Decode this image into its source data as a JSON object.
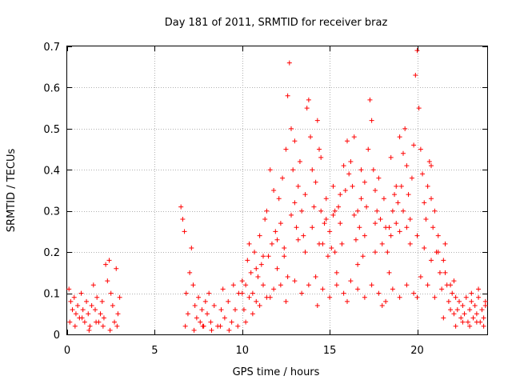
{
  "chart_data": {
    "type": "scatter",
    "title": "Day 181 of 2011, SRMTID for receiver braz",
    "xlabel": "GPS time / hours",
    "ylabel": "SRMTID / TECUs",
    "xlim": [
      0,
      24
    ],
    "ylim": [
      0,
      0.7
    ],
    "x_ticks": [
      0,
      5,
      10,
      15,
      20
    ],
    "y_ticks": [
      0,
      0.1,
      0.2,
      0.3,
      0.4,
      0.5,
      0.6,
      0.7
    ],
    "x_tick_labels": [
      "0",
      "5",
      "10",
      "15",
      "20"
    ],
    "y_tick_labels": [
      "0",
      "0.1",
      "0.2",
      "0.3",
      "0.4",
      "0.5",
      "0.6",
      "0.7"
    ],
    "grid": true,
    "marker": "+",
    "colors": {
      "series": "#ff0000",
      "grid": "#b0b0b0",
      "axis": "#000000"
    },
    "series": [
      {
        "name": "SRMTID",
        "points": [
          [
            0.1,
            0.11
          ],
          [
            0.2,
            0.08
          ],
          [
            0.3,
            0.06
          ],
          [
            0.4,
            0.09
          ],
          [
            0.5,
            0.05
          ],
          [
            0.6,
            0.07
          ],
          [
            0.7,
            0.04
          ],
          [
            0.8,
            0.1
          ],
          [
            0.9,
            0.06
          ],
          [
            1.0,
            0.03
          ],
          [
            1.1,
            0.08
          ],
          [
            1.2,
            0.05
          ],
          [
            1.3,
            0.02
          ],
          [
            1.4,
            0.07
          ],
          [
            1.5,
            0.12
          ],
          [
            1.6,
            0.06
          ],
          [
            1.7,
            0.09
          ],
          [
            1.8,
            0.03
          ],
          [
            1.9,
            0.05
          ],
          [
            2.0,
            0.08
          ],
          [
            2.1,
            0.04
          ],
          [
            2.2,
            0.17
          ],
          [
            2.3,
            0.13
          ],
          [
            2.4,
            0.18
          ],
          [
            2.5,
            0.1
          ],
          [
            2.6,
            0.07
          ],
          [
            2.7,
            0.03
          ],
          [
            2.8,
            0.16
          ],
          [
            2.9,
            0.05
          ],
          [
            3.0,
            0.09
          ],
          [
            0.15,
            0.03
          ],
          [
            0.45,
            0.02
          ],
          [
            0.85,
            0.04
          ],
          [
            1.25,
            0.01
          ],
          [
            1.65,
            0.03
          ],
          [
            2.05,
            0.02
          ],
          [
            2.45,
            0.01
          ],
          [
            2.85,
            0.02
          ],
          [
            6.5,
            0.31
          ],
          [
            6.6,
            0.28
          ],
          [
            6.7,
            0.25
          ],
          [
            6.8,
            0.1
          ],
          [
            6.9,
            0.05
          ],
          [
            7.0,
            0.15
          ],
          [
            7.1,
            0.21
          ],
          [
            7.2,
            0.12
          ],
          [
            7.3,
            0.07
          ],
          [
            7.4,
            0.04
          ],
          [
            7.5,
            0.09
          ],
          [
            7.6,
            0.03
          ],
          [
            7.7,
            0.06
          ],
          [
            7.8,
            0.02
          ],
          [
            7.9,
            0.08
          ],
          [
            8.0,
            0.05
          ],
          [
            8.2,
            0.03
          ],
          [
            8.4,
            0.07
          ],
          [
            8.6,
            0.02
          ],
          [
            8.8,
            0.06
          ],
          [
            9.0,
            0.04
          ],
          [
            9.2,
            0.08
          ],
          [
            9.4,
            0.03
          ],
          [
            9.6,
            0.06
          ],
          [
            9.8,
            0.1
          ],
          [
            10.0,
            0.13
          ],
          [
            6.75,
            0.02
          ],
          [
            7.25,
            0.01
          ],
          [
            7.75,
            0.02
          ],
          [
            8.25,
            0.01
          ],
          [
            8.75,
            0.02
          ],
          [
            9.25,
            0.01
          ],
          [
            9.75,
            0.02
          ],
          [
            8.1,
            0.1
          ],
          [
            8.9,
            0.11
          ],
          [
            9.5,
            0.12
          ],
          [
            10.1,
            0.06
          ],
          [
            10.3,
            0.18
          ],
          [
            10.4,
            0.22
          ],
          [
            10.5,
            0.15
          ],
          [
            10.6,
            0.1
          ],
          [
            10.7,
            0.2
          ],
          [
            10.8,
            0.08
          ],
          [
            10.9,
            0.14
          ],
          [
            11.0,
            0.24
          ],
          [
            11.1,
            0.17
          ],
          [
            11.2,
            0.12
          ],
          [
            11.3,
            0.28
          ],
          [
            11.4,
            0.3
          ],
          [
            11.5,
            0.19
          ],
          [
            11.6,
            0.09
          ],
          [
            11.7,
            0.22
          ],
          [
            11.8,
            0.35
          ],
          [
            11.9,
            0.25
          ],
          [
            12.0,
            0.16
          ],
          [
            12.1,
            0.33
          ],
          [
            12.2,
            0.27
          ],
          [
            12.3,
            0.38
          ],
          [
            12.4,
            0.21
          ],
          [
            12.5,
            0.45
          ],
          [
            12.6,
            0.58
          ],
          [
            12.7,
            0.66
          ],
          [
            12.8,
            0.5
          ],
          [
            12.9,
            0.4
          ],
          [
            13.0,
            0.32
          ],
          [
            13.1,
            0.26
          ],
          [
            13.2,
            0.36
          ],
          [
            13.3,
            0.42
          ],
          [
            13.4,
            0.3
          ],
          [
            13.5,
            0.24
          ],
          [
            13.6,
            0.34
          ],
          [
            13.7,
            0.55
          ],
          [
            13.8,
            0.57
          ],
          [
            13.9,
            0.48
          ],
          [
            14.0,
            0.4
          ],
          [
            14.1,
            0.31
          ],
          [
            14.2,
            0.37
          ],
          [
            14.3,
            0.52
          ],
          [
            14.4,
            0.45
          ],
          [
            14.5,
            0.3
          ],
          [
            14.6,
            0.22
          ],
          [
            14.7,
            0.27
          ],
          [
            14.8,
            0.33
          ],
          [
            14.9,
            0.19
          ],
          [
            15.0,
            0.25
          ],
          [
            15.1,
            0.21
          ],
          [
            15.2,
            0.29
          ],
          [
            15.3,
            0.2
          ],
          [
            15.4,
            0.15
          ],
          [
            15.5,
            0.31
          ],
          [
            15.6,
            0.27
          ],
          [
            15.7,
            0.22
          ],
          [
            15.8,
            0.41
          ],
          [
            15.9,
            0.35
          ],
          [
            16.0,
            0.47
          ],
          [
            16.1,
            0.39
          ],
          [
            16.2,
            0.42
          ],
          [
            16.3,
            0.36
          ],
          [
            16.4,
            0.29
          ],
          [
            16.5,
            0.23
          ],
          [
            16.6,
            0.17
          ],
          [
            16.7,
            0.26
          ],
          [
            16.8,
            0.33
          ],
          [
            16.9,
            0.19
          ],
          [
            17.0,
            0.24
          ],
          [
            17.1,
            0.31
          ],
          [
            17.2,
            0.45
          ],
          [
            17.3,
            0.57
          ],
          [
            17.4,
            0.52
          ],
          [
            17.5,
            0.4
          ],
          [
            17.6,
            0.35
          ],
          [
            17.7,
            0.3
          ],
          [
            17.8,
            0.38
          ],
          [
            17.9,
            0.28
          ],
          [
            18.0,
            0.22
          ],
          [
            18.1,
            0.33
          ],
          [
            18.2,
            0.26
          ],
          [
            18.3,
            0.2
          ],
          [
            18.4,
            0.15
          ],
          [
            18.5,
            0.24
          ],
          [
            18.6,
            0.3
          ],
          [
            18.7,
            0.34
          ],
          [
            18.8,
            0.27
          ],
          [
            18.9,
            0.32
          ],
          [
            19.0,
            0.25
          ],
          [
            19.1,
            0.36
          ],
          [
            19.2,
            0.44
          ],
          [
            19.3,
            0.5
          ],
          [
            19.4,
            0.41
          ],
          [
            19.5,
            0.34
          ],
          [
            19.6,
            0.28
          ],
          [
            19.7,
            0.38
          ],
          [
            19.8,
            0.46
          ],
          [
            19.9,
            0.63
          ],
          [
            20.0,
            0.69
          ],
          [
            20.1,
            0.55
          ],
          [
            20.2,
            0.45
          ],
          [
            20.3,
            0.39
          ],
          [
            20.4,
            0.32
          ],
          [
            20.5,
            0.28
          ],
          [
            20.6,
            0.36
          ],
          [
            20.7,
            0.42
          ],
          [
            20.8,
            0.33
          ],
          [
            20.9,
            0.26
          ],
          [
            21.0,
            0.3
          ],
          [
            21.1,
            0.2
          ],
          [
            21.2,
            0.24
          ],
          [
            21.3,
            0.15
          ],
          [
            21.4,
            0.11
          ],
          [
            21.5,
            0.18
          ],
          [
            21.6,
            0.22
          ],
          [
            21.7,
            0.12
          ],
          [
            21.8,
            0.08
          ],
          [
            21.9,
            0.06
          ],
          [
            22.0,
            0.1
          ],
          [
            22.1,
            0.05
          ],
          [
            10.2,
            0.03
          ],
          [
            10.6,
            0.05
          ],
          [
            11.0,
            0.07
          ],
          [
            11.4,
            0.09
          ],
          [
            11.8,
            0.11
          ],
          [
            12.2,
            0.12
          ],
          [
            12.6,
            0.14
          ],
          [
            13.0,
            0.13
          ],
          [
            13.4,
            0.1
          ],
          [
            13.8,
            0.12
          ],
          [
            14.2,
            0.14
          ],
          [
            14.6,
            0.11
          ],
          [
            15.0,
            0.09
          ],
          [
            15.4,
            0.12
          ],
          [
            15.8,
            0.1
          ],
          [
            16.2,
            0.13
          ],
          [
            16.6,
            0.11
          ],
          [
            17.0,
            0.09
          ],
          [
            17.4,
            0.12
          ],
          [
            17.8,
            0.1
          ],
          [
            18.2,
            0.08
          ],
          [
            18.6,
            0.11
          ],
          [
            19.0,
            0.09
          ],
          [
            19.4,
            0.12
          ],
          [
            19.8,
            0.1
          ],
          [
            20.2,
            0.14
          ],
          [
            20.6,
            0.12
          ],
          [
            21.0,
            0.09
          ],
          [
            12.5,
            0.08
          ],
          [
            14.3,
            0.07
          ],
          [
            16.0,
            0.08
          ],
          [
            18.0,
            0.07
          ],
          [
            20.0,
            0.09
          ],
          [
            21.5,
            0.04
          ],
          [
            11.6,
            0.4
          ],
          [
            13.0,
            0.47
          ],
          [
            14.5,
            0.43
          ],
          [
            16.4,
            0.48
          ],
          [
            18.5,
            0.43
          ],
          [
            19.0,
            0.48
          ],
          [
            20.8,
            0.41
          ],
          [
            15.3,
            0.3
          ],
          [
            17.6,
            0.27
          ],
          [
            19.6,
            0.22
          ],
          [
            22.2,
            0.09
          ],
          [
            22.3,
            0.06
          ],
          [
            22.4,
            0.08
          ],
          [
            22.5,
            0.04
          ],
          [
            22.6,
            0.07
          ],
          [
            22.7,
            0.05
          ],
          [
            22.8,
            0.09
          ],
          [
            22.9,
            0.03
          ],
          [
            23.0,
            0.06
          ],
          [
            23.1,
            0.08
          ],
          [
            23.2,
            0.04
          ],
          [
            23.3,
            0.07
          ],
          [
            23.4,
            0.05
          ],
          [
            23.5,
            0.09
          ],
          [
            23.6,
            0.03
          ],
          [
            23.7,
            0.06
          ],
          [
            23.8,
            0.04
          ],
          [
            23.9,
            0.07
          ],
          [
            22.2,
            0.02
          ],
          [
            22.6,
            0.03
          ],
          [
            23.0,
            0.02
          ],
          [
            23.4,
            0.03
          ],
          [
            23.8,
            0.02
          ],
          [
            21.9,
            0.12
          ],
          [
            22.1,
            0.13
          ],
          [
            23.1,
            0.1
          ],
          [
            23.5,
            0.11
          ],
          [
            23.9,
            0.08
          ],
          [
            10.0,
            0.1
          ],
          [
            10.2,
            0.12
          ],
          [
            10.4,
            0.09
          ],
          [
            10.8,
            0.16
          ],
          [
            11.2,
            0.19
          ],
          [
            12.0,
            0.23
          ],
          [
            12.8,
            0.29
          ],
          [
            13.6,
            0.2
          ],
          [
            14.0,
            0.26
          ],
          [
            14.4,
            0.22
          ],
          [
            14.8,
            0.28
          ],
          [
            15.6,
            0.34
          ],
          [
            16.8,
            0.4
          ],
          [
            17.6,
            0.2
          ],
          [
            18.4,
            0.26
          ],
          [
            19.2,
            0.3
          ],
          [
            20.0,
            0.24
          ],
          [
            20.4,
            0.21
          ],
          [
            20.8,
            0.18
          ],
          [
            21.2,
            0.2
          ],
          [
            21.6,
            0.15
          ],
          [
            12.4,
            0.19
          ],
          [
            13.2,
            0.23
          ],
          [
            15.2,
            0.36
          ],
          [
            16.6,
            0.3
          ],
          [
            17.0,
            0.37
          ],
          [
            18.8,
            0.36
          ],
          [
            19.4,
            0.26
          ]
        ]
      }
    ]
  }
}
